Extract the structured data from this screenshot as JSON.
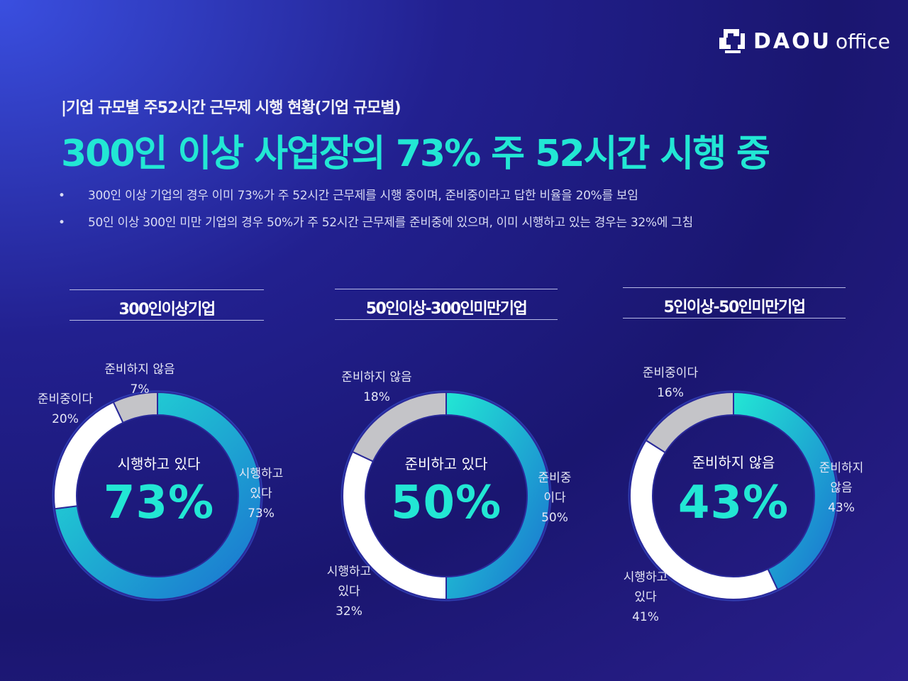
{
  "brand": {
    "name_bold": "DAOU",
    "name_light": "office"
  },
  "header": {
    "eyebrow": "|기업 규모별 주52시간 근무제 시행 현황(기업 규모별)",
    "headline": "300인 이상 사업장의 73% 주 52시간 시행 중",
    "bullets": [
      "300인 이상 기업의 경우 이미 73%가 주 52시간 근무제를 시행 중이며, 준비중이라고 답한 비율을 20%를 보임",
      "50인 이상 300인 미만 기업의 경우 50%가 주 52시간 근무제를 준비중에 있으며, 이미 시행하고 있는 경우는 32%에 그침"
    ],
    "bullet_mark": "•"
  },
  "colors": {
    "accent": "#22e7d4",
    "teal_dark": "#1a8fd8",
    "white": "#ffffff",
    "gray": "#c4c4c8"
  },
  "chart_data": [
    {
      "type": "pie",
      "title": "300인이상기업",
      "center_label": "시행하고 있다",
      "center_value": "73%",
      "slices": [
        {
          "name": "시행하고 있다",
          "value": 73,
          "label_lines": [
            "시행하고",
            "있다",
            "73%"
          ],
          "color": "teal"
        },
        {
          "name": "준비중이다",
          "value": 20,
          "label_lines": [
            "준비중이다",
            "20%"
          ],
          "color": "white"
        },
        {
          "name": "준비하지 않음",
          "value": 7,
          "label_lines": [
            "준비하지 않음",
            "7%"
          ],
          "color": "gray"
        }
      ]
    },
    {
      "type": "pie",
      "title": "50인이상-300인미만기업",
      "center_label": "준비하고 있다",
      "center_value": "50%",
      "slices": [
        {
          "name": "준비중이다",
          "value": 50,
          "label_lines": [
            "준비중",
            "이다",
            "50%"
          ],
          "color": "teal"
        },
        {
          "name": "시행하고 있다",
          "value": 32,
          "label_lines": [
            "시행하고",
            "있다",
            "32%"
          ],
          "color": "white"
        },
        {
          "name": "준비하지 않음",
          "value": 18,
          "label_lines": [
            "준비하지 않음",
            "18%"
          ],
          "color": "gray"
        }
      ]
    },
    {
      "type": "pie",
      "title": "5인이상-50인미만기업",
      "center_label": "준비하지 않음",
      "center_value": "43%",
      "slices": [
        {
          "name": "준비하지 않음",
          "value": 43,
          "label_lines": [
            "준비하지",
            "않음",
            "43%"
          ],
          "color": "teal"
        },
        {
          "name": "시행하고 있다",
          "value": 41,
          "label_lines": [
            "시행하고",
            "있다",
            "41%"
          ],
          "color": "white"
        },
        {
          "name": "준비중이다",
          "value": 16,
          "label_lines": [
            "준비중이다",
            "16%"
          ],
          "color": "gray"
        }
      ]
    }
  ]
}
